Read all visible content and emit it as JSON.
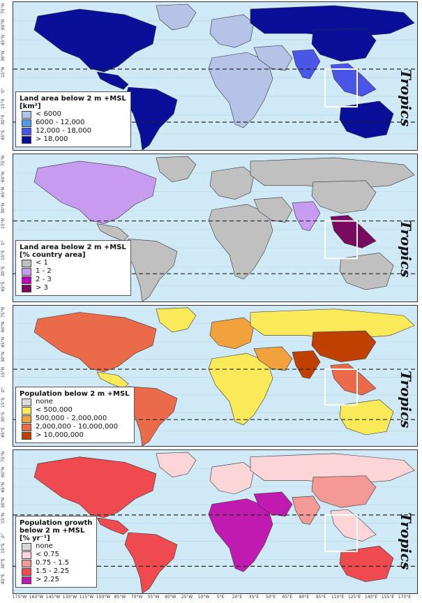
{
  "panels": [
    {
      "legend_title": [
        "Land area below 2 m +MSL",
        "[km²]"
      ],
      "tropics_label": "Tropics",
      "ocean": "#cfe9f6",
      "classes": [
        {
          "label": "< 6000",
          "color": "#b4c3e6"
        },
        {
          "label": "6000 - 12,000",
          "color": "#4f9be6"
        },
        {
          "label": "12,000 - 18,000",
          "color": "#4b55e8"
        },
        {
          "label": "> 18,000",
          "color": "#0a0f99"
        }
      ]
    },
    {
      "legend_title": [
        "Land area below 2 m +MSL",
        "[% country area]"
      ],
      "tropics_label": "Tropics",
      "ocean": "#cfe9f6",
      "classes": [
        {
          "label": "< 1",
          "color": "#c0c0c0"
        },
        {
          "label": "1 - 2",
          "color": "#c79cf0"
        },
        {
          "label": "2 - 3",
          "color": "#c000c0"
        },
        {
          "label": "> 3",
          "color": "#7a0a60"
        }
      ]
    },
    {
      "legend_title": [
        "Population below 2 m +MSL"
      ],
      "tropics_label": "Tropics",
      "ocean": "#cfe9f6",
      "classes": [
        {
          "label": "none",
          "color": "#d9d9d9"
        },
        {
          "label": "< 500,000",
          "color": "#faea5a"
        },
        {
          "label": "500,000 - 2,000,000",
          "color": "#f2a23c"
        },
        {
          "label": "2,000,000 - 10,000,000",
          "color": "#ea6a4a"
        },
        {
          "label": "> 10,000,000",
          "color": "#c04000"
        }
      ]
    },
    {
      "legend_title": [
        "Population growth",
        "below 2 m +MSL",
        "[% yr⁻¹]"
      ],
      "tropics_label": "Tropics",
      "ocean": "#cfe9f6",
      "classes": [
        {
          "label": "none",
          "color": "#d9d9d9"
        },
        {
          "label": "< 0.75",
          "color": "#fbd5d8"
        },
        {
          "label": "0.75 - 1.5",
          "color": "#f39a96"
        },
        {
          "label": "1.5 - 2.25",
          "color": "#ee4a50"
        },
        {
          "label": "> 2.25",
          "color": "#c01ab0"
        }
      ]
    }
  ],
  "lat_labels": [
    "75°N",
    "60°N",
    "45°N",
    "30°N",
    "15°N",
    "0°",
    "15°S",
    "30°S",
    "45°S"
  ],
  "lon_labels": [
    "175°W",
    "160°W",
    "145°W",
    "130°W",
    "115°W",
    "100°W",
    "85°W",
    "70°W",
    "55°W",
    "40°W",
    "25°W",
    "10°W",
    "5°E",
    "20°E",
    "35°E",
    "50°E",
    "65°E",
    "80°E",
    "95°E",
    "110°E",
    "125°E",
    "140°E",
    "155°E",
    "170°E"
  ],
  "country_colors": [
    {
      "na": 3,
      "ca": 3,
      "sa": 3,
      "green": 0,
      "eu": 0,
      "ru": 3,
      "africa": 0,
      "ind": 2,
      "sea": 2,
      "cn": 3,
      "aus": 3,
      "me": 0
    },
    {
      "na": 1,
      "ca": 0,
      "sa": 0,
      "green": 0,
      "eu": 0,
      "ru": 0,
      "africa": 0,
      "ind": 1,
      "sea": 3,
      "cn": 0,
      "aus": 0,
      "me": 0
    },
    {
      "na": 3,
      "ca": 1,
      "sa": 3,
      "green": 1,
      "eu": 2,
      "ru": 1,
      "africa": 1,
      "ind": 4,
      "sea": 3,
      "cn": 4,
      "aus": 1,
      "me": 2
    },
    {
      "na": 3,
      "ca": 3,
      "sa": 3,
      "green": 1,
      "eu": 1,
      "ru": 1,
      "africa": 4,
      "ind": 2,
      "sea": 1,
      "cn": 2,
      "aus": 3,
      "me": 4
    }
  ]
}
